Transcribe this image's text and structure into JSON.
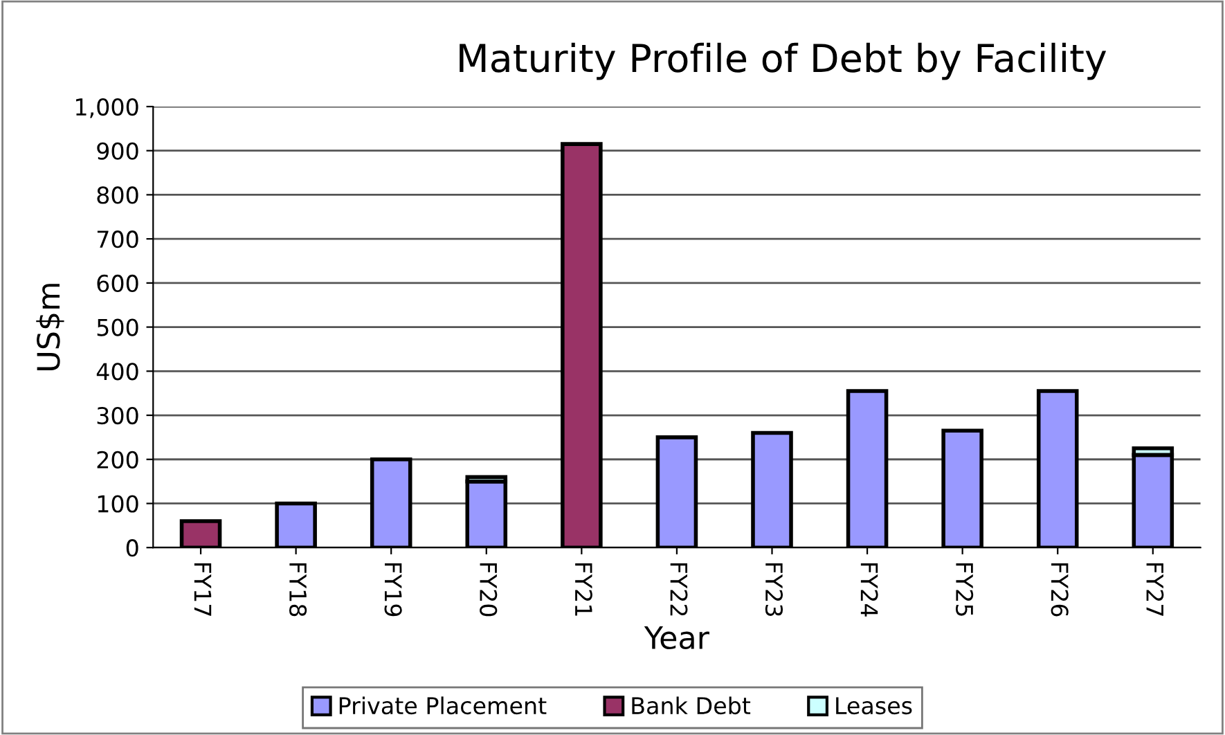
{
  "chart_data": {
    "type": "bar",
    "title": "Maturity Profile of Debt by Facility",
    "xlabel": "Year",
    "ylabel": "US$m",
    "categories": [
      "FY17",
      "FY18",
      "FY19",
      "FY20",
      "FY21",
      "FY22",
      "FY23",
      "FY24",
      "FY25",
      "FY26",
      "FY27"
    ],
    "series": [
      {
        "name": "Private Placement",
        "color": "#9999ff",
        "values": [
          null,
          100,
          200,
          150,
          null,
          250,
          260,
          355,
          265,
          355,
          210
        ]
      },
      {
        "name": "Bank Debt",
        "color": "#993366",
        "values": [
          60,
          null,
          null,
          null,
          915,
          null,
          null,
          null,
          null,
          null,
          null
        ]
      },
      {
        "name": "Leases",
        "color": "#ccffff",
        "values": [
          null,
          null,
          null,
          10,
          null,
          null,
          null,
          null,
          null,
          null,
          15
        ]
      }
    ],
    "stacked": true,
    "ylim": [
      0,
      1000
    ],
    "yticks": [
      0,
      100,
      200,
      300,
      400,
      500,
      600,
      700,
      800,
      900,
      {
        "value": 1000,
        "label": "1,000"
      }
    ],
    "grid": "y",
    "legend": "bottom"
  }
}
